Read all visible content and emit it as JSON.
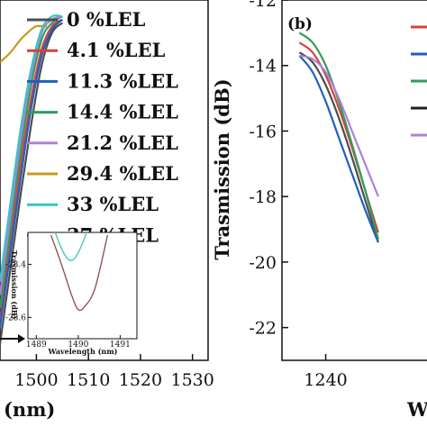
{
  "chart_data": [
    {
      "panel": "a",
      "type": "line",
      "xlabel": "(nm)",
      "ylabel": "",
      "xlim": [
        1493,
        1533
      ],
      "ylim": [
        -24,
        -13
      ],
      "x_ticks": [
        1500,
        1510,
        1520,
        1530
      ],
      "x_tick_labels": [
        "1500",
        "1510",
        "1520",
        "1530"
      ],
      "legend_position": "top-right",
      "series": [
        {
          "name": "0 %LEL",
          "color": "#4d4d4d",
          "x": [
            1493,
            1495,
            1497,
            1499,
            1501,
            1503,
            1505
          ],
          "y": [
            -23.5,
            -21.2,
            -18.9,
            -16.8,
            -15.0,
            -14.0,
            -13.7
          ]
        },
        {
          "name": "4.1 %LEL",
          "color": "#d9413d",
          "x": [
            1493,
            1495,
            1497,
            1499,
            1501,
            1503,
            1505
          ],
          "y": [
            -22.8,
            -20.4,
            -18.0,
            -16.0,
            -14.5,
            -13.8,
            -13.6
          ]
        },
        {
          "name": "11.3 %LEL",
          "color": "#1f5fbf",
          "x": [
            1493,
            1495,
            1497,
            1499,
            1501,
            1503,
            1505
          ],
          "y": [
            -23.0,
            -20.7,
            -18.4,
            -16.3,
            -14.7,
            -13.9,
            -13.6
          ]
        },
        {
          "name": "14.4 %LEL",
          "color": "#2e9e5b",
          "x": [
            1493,
            1495,
            1497,
            1499,
            1501,
            1503,
            1505
          ],
          "y": [
            -22.4,
            -20.0,
            -17.6,
            -15.6,
            -14.2,
            -13.7,
            -13.5
          ]
        },
        {
          "name": "21.2 %LEL",
          "color": "#b07fd8",
          "x": [
            1493,
            1495,
            1497,
            1499,
            1501,
            1503,
            1505
          ],
          "y": [
            -22.0,
            -19.6,
            -17.2,
            -15.3,
            -14.0,
            -13.6,
            -13.5
          ]
        },
        {
          "name": "29.4 %LEL",
          "color": "#c89a1e",
          "x": [
            1493,
            1495,
            1497,
            1499,
            1500,
            1501,
            1502
          ],
          "y": [
            -14.9,
            -14.6,
            -14.2,
            -13.9,
            -13.8,
            -13.8,
            -13.8
          ]
        },
        {
          "name": "33 %LEL",
          "color": "#36c6c0",
          "x": [
            1493,
            1495,
            1497,
            1499,
            1501,
            1503,
            1505
          ],
          "y": [
            -21.6,
            -19.2,
            -16.9,
            -15.1,
            -13.9,
            -13.5,
            -13.5
          ]
        },
        {
          "name": "37 %LEL",
          "color": "#8b4a4a",
          "x": [],
          "y": []
        }
      ],
      "inset": {
        "panel": "a",
        "xlabel": "Wavelength (nm)",
        "ylabel": "Trasmission (dB)",
        "xlim": [
          1488.8,
          1491.4
        ],
        "ylim": [
          -28.68,
          -28.28
        ],
        "x_ticks": [
          1489,
          1490,
          1491
        ],
        "x_tick_labels": [
          "1489",
          "1490",
          "1491"
        ],
        "y_ticks": [
          -28.4,
          -28.6
        ],
        "y_tick_labels": [
          "-28.4",
          "-28.6"
        ],
        "series": [
          {
            "color": "#36c6c0",
            "x": [
              1489.45,
              1489.6,
              1489.75,
              1489.9,
              1490.05,
              1490.2
            ],
            "y": [
              -28.28,
              -28.34,
              -28.38,
              -28.38,
              -28.34,
              -28.28
            ]
          },
          {
            "color": "#8b4a4a",
            "x": [
              1489.35,
              1489.6,
              1489.85,
              1490.0,
              1490.15,
              1490.4,
              1490.7
            ],
            "y": [
              -28.29,
              -28.4,
              -28.52,
              -28.57,
              -28.56,
              -28.49,
              -28.29
            ]
          }
        ]
      }
    },
    {
      "panel": "b",
      "type": "line",
      "xlabel": "W",
      "ylabel": "Trasmission (dB)",
      "xlim": [
        1230,
        1265
      ],
      "ylim": [
        -23,
        -12
      ],
      "x_ticks": [
        1240
      ],
      "x_tick_labels": [
        "1240"
      ],
      "y_ticks": [
        -12,
        -14,
        -16,
        -18,
        -20,
        -22
      ],
      "y_tick_labels": [
        "-12",
        "-14",
        "-16",
        "-18",
        "-20",
        "-22"
      ],
      "series": [
        {
          "color": "#4d4d4d",
          "x": [
            1234,
            1237,
            1240,
            1243,
            1246,
            1249,
            1252
          ],
          "y": [
            -13.6,
            -13.9,
            -14.6,
            -15.6,
            -16.8,
            -18.1,
            -19.4
          ]
        },
        {
          "color": "#d9413d",
          "x": [
            1234,
            1237,
            1240,
            1243,
            1246,
            1249,
            1252
          ],
          "y": [
            -13.3,
            -13.6,
            -14.3,
            -15.3,
            -16.5,
            -17.8,
            -19.1
          ]
        },
        {
          "color": "#1f5fbf",
          "x": [
            1234,
            1237,
            1240,
            1243,
            1246,
            1249,
            1252
          ],
          "y": [
            -13.7,
            -14.2,
            -15.1,
            -16.2,
            -17.3,
            -18.4,
            -19.4
          ]
        },
        {
          "color": "#2e9e5b",
          "x": [
            1234,
            1237,
            1240,
            1243,
            1246,
            1249,
            1252
          ],
          "y": [
            -13.0,
            -13.3,
            -14.0,
            -15.1,
            -16.4,
            -17.8,
            -19.3
          ]
        },
        {
          "color": "#b07fd8",
          "x": [
            1234,
            1237,
            1240,
            1243,
            1246,
            1249,
            1252
          ],
          "y": [
            -13.7,
            -13.8,
            -14.2,
            -15.0,
            -16.0,
            -17.0,
            -18.0
          ]
        }
      ],
      "legend_colors": [
        "#d9413d",
        "#1f5fbf",
        "#2e9e5b",
        "#222222",
        "#b07fd8"
      ]
    }
  ],
  "panel_b_label": "(b)"
}
